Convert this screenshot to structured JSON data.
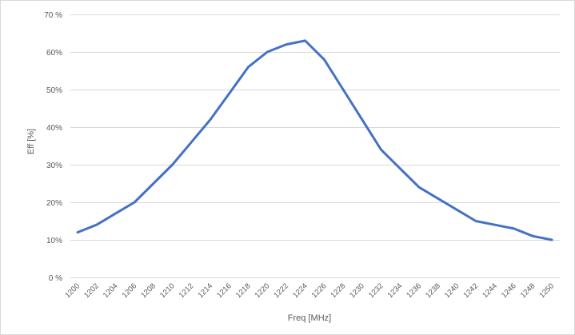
{
  "chart_data": {
    "type": "line",
    "title": "",
    "xlabel": "Freq [MHz]",
    "ylabel": "Eff [%]",
    "grid": true,
    "ylim": [
      0,
      70
    ],
    "yticks": [
      "0 %",
      "10%",
      "20%",
      "30%",
      "40%",
      "50%",
      "60%",
      "70 %"
    ],
    "y_tick_values": [
      0,
      10,
      20,
      30,
      40,
      50,
      60,
      70
    ],
    "x": [
      1200,
      1202,
      1204,
      1206,
      1208,
      1210,
      1212,
      1214,
      1216,
      1218,
      1220,
      1222,
      1224,
      1226,
      1228,
      1230,
      1232,
      1234,
      1236,
      1238,
      1240,
      1242,
      1244,
      1246,
      1248,
      1250
    ],
    "series": [
      {
        "values": [
          12,
          14,
          17,
          20,
          25,
          30,
          36,
          42,
          49,
          56,
          60,
          62,
          63,
          58,
          50,
          42,
          34,
          29,
          24,
          21,
          18,
          15,
          14,
          13,
          11,
          10
        ],
        "color": "#4472c4"
      }
    ]
  }
}
